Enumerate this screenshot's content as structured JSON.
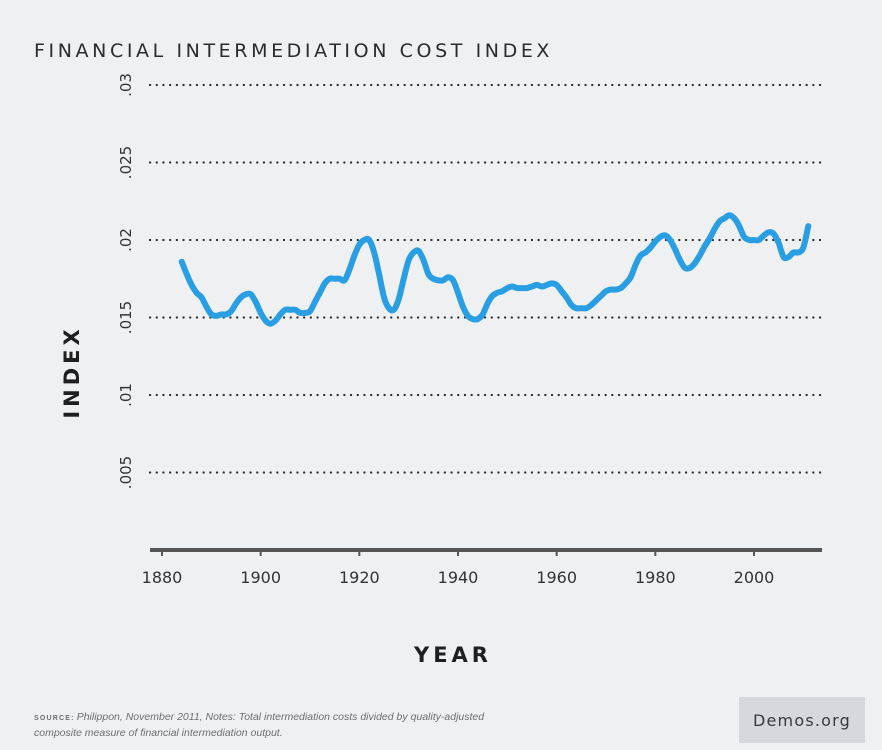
{
  "chart_data": {
    "type": "line",
    "title": "FINANCIAL INTERMEDIATION COST INDEX",
    "xlabel": "YEAR",
    "ylabel": "INDEX",
    "xlim": [
      1876,
      2014
    ],
    "ylim": [
      0,
      0.03
    ],
    "x_ticks": [
      1880,
      1900,
      1920,
      1940,
      1960,
      1980,
      2000
    ],
    "x_tick_labels": [
      "1880",
      "1900",
      "1920",
      "1940",
      "1960",
      "1980",
      "2000"
    ],
    "y_ticks": [
      0.005,
      0.01,
      0.015,
      0.02,
      0.025,
      0.03
    ],
    "y_tick_labels": [
      ".005",
      ".01",
      ".015",
      ".02",
      ".025",
      ".03"
    ],
    "grid": "horizontal-dotted",
    "line_color": "#2a9ee3",
    "series": [
      {
        "x": [
          1884,
          1885,
          1886,
          1887,
          1888,
          1889,
          1890,
          1891,
          1892,
          1893,
          1894,
          1895,
          1896,
          1897,
          1898,
          1899,
          1900,
          1901,
          1902,
          1903,
          1904,
          1905,
          1906,
          1907,
          1908,
          1909,
          1910,
          1911,
          1912,
          1913,
          1914,
          1915,
          1916,
          1917,
          1918,
          1919,
          1920,
          1921,
          1922,
          1923,
          1924,
          1925,
          1926,
          1927,
          1928,
          1929,
          1930,
          1931,
          1932,
          1933,
          1934,
          1935,
          1936,
          1937,
          1938,
          1939,
          1940,
          1941,
          1942,
          1943,
          1944,
          1945,
          1946,
          1947,
          1948,
          1949,
          1950,
          1951,
          1952,
          1953,
          1954,
          1955,
          1956,
          1957,
          1958,
          1959,
          1960,
          1961,
          1962,
          1963,
          1964,
          1965,
          1966,
          1967,
          1968,
          1969,
          1970,
          1971,
          1972,
          1973,
          1974,
          1975,
          1976,
          1977,
          1978,
          1979,
          1980,
          1981,
          1982,
          1983,
          1984,
          1985,
          1986,
          1987,
          1988,
          1989,
          1990,
          1991,
          1992,
          1993,
          1994,
          1995,
          1996,
          1997,
          1998,
          1999,
          2000,
          2001,
          2002,
          2003,
          2004,
          2005,
          2006,
          2007,
          2008,
          2009,
          2010,
          2011
        ],
        "values": [
          0.0186,
          0.0178,
          0.0171,
          0.0166,
          0.0163,
          0.0157,
          0.0152,
          0.0151,
          0.0152,
          0.0152,
          0.0154,
          0.0159,
          0.0163,
          0.0165,
          0.0165,
          0.016,
          0.0153,
          0.0148,
          0.0146,
          0.0148,
          0.0152,
          0.0155,
          0.0155,
          0.0155,
          0.0153,
          0.0153,
          0.0154,
          0.016,
          0.0166,
          0.0172,
          0.0175,
          0.0175,
          0.0175,
          0.0174,
          0.0181,
          0.019,
          0.0197,
          0.02,
          0.02,
          0.0192,
          0.0178,
          0.0163,
          0.0156,
          0.0155,
          0.0162,
          0.0175,
          0.0187,
          0.0192,
          0.0193,
          0.0187,
          0.0178,
          0.0175,
          0.0174,
          0.0174,
          0.0176,
          0.0174,
          0.0166,
          0.0157,
          0.0151,
          0.0149,
          0.0149,
          0.0152,
          0.0159,
          0.0164,
          0.0166,
          0.0167,
          0.0169,
          0.017,
          0.0169,
          0.0169,
          0.0169,
          0.017,
          0.0171,
          0.017,
          0.0171,
          0.0172,
          0.0171,
          0.0167,
          0.0163,
          0.0158,
          0.0156,
          0.0156,
          0.0156,
          0.0158,
          0.0161,
          0.0164,
          0.0167,
          0.0168,
          0.0168,
          0.0169,
          0.0172,
          0.0176,
          0.0184,
          0.019,
          0.0192,
          0.0195,
          0.0199,
          0.0202,
          0.0203,
          0.02,
          0.0194,
          0.0187,
          0.0182,
          0.0182,
          0.0185,
          0.019,
          0.0196,
          0.0201,
          0.0207,
          0.0212,
          0.0214,
          0.0216,
          0.0214,
          0.0209,
          0.0202,
          0.02,
          0.02,
          0.02,
          0.0203,
          0.0205,
          0.0204,
          0.0198,
          0.0189,
          0.0189,
          0.0192,
          0.0192,
          0.0195,
          0.0209
        ]
      }
    ]
  },
  "source": {
    "label": "SOURCE:",
    "text": "Philippon, November 2011, Notes: Total intermediation costs divided by quality-adjusted composite measure of financial intermediation output."
  },
  "brand": "Demos.org"
}
